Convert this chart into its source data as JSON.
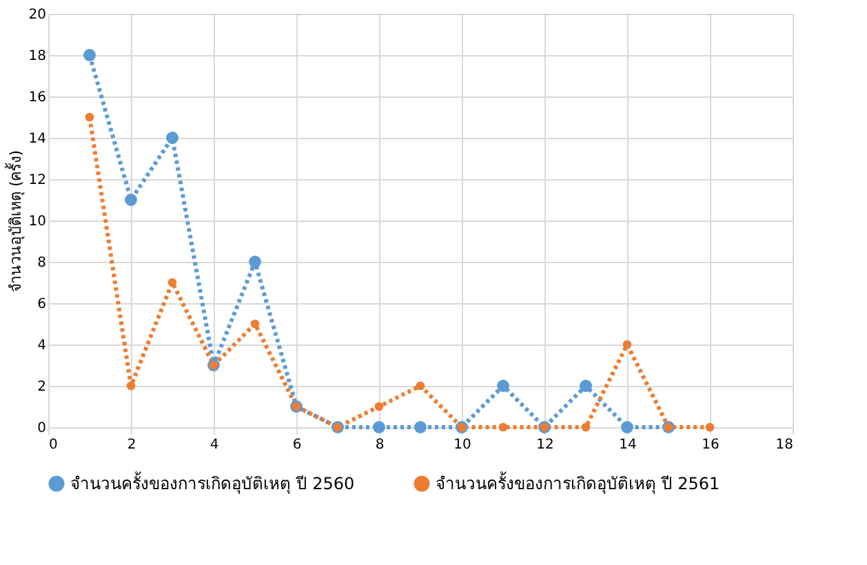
{
  "chart_data": {
    "type": "line",
    "ylabel": "จำนวนอุบัติเหตุ (ครั้ง)",
    "x": [
      1,
      2,
      3,
      4,
      5,
      6,
      7,
      8,
      9,
      10,
      11,
      12,
      13,
      14,
      15,
      16
    ],
    "series": [
      {
        "name": "จำนวนครั้งของการเกิดอุบัติเหตุ ปี 2560",
        "color": "#5b9bd5",
        "values": [
          18,
          11,
          14,
          3,
          8,
          1,
          0,
          0,
          0,
          0,
          2,
          0,
          2,
          0,
          0,
          null
        ]
      },
      {
        "name": "จำนวนครั้งของการเกิดอุบัติเหตุ ปี 2561",
        "color": "#ed7d31",
        "values": [
          15,
          2,
          7,
          3,
          5,
          1,
          0,
          1,
          2,
          0,
          0,
          0,
          0,
          4,
          0,
          0
        ]
      }
    ],
    "xlim": [
      0,
      18
    ],
    "xticks": [
      0,
      2,
      4,
      6,
      8,
      10,
      12,
      14,
      16,
      18
    ],
    "ylim": [
      0,
      20
    ],
    "yticks": [
      0,
      2,
      4,
      6,
      8,
      10,
      12,
      14,
      16,
      18,
      20
    ],
    "grid": true,
    "legend": "bottom",
    "marker": "circle",
    "line_style": "dotted"
  }
}
